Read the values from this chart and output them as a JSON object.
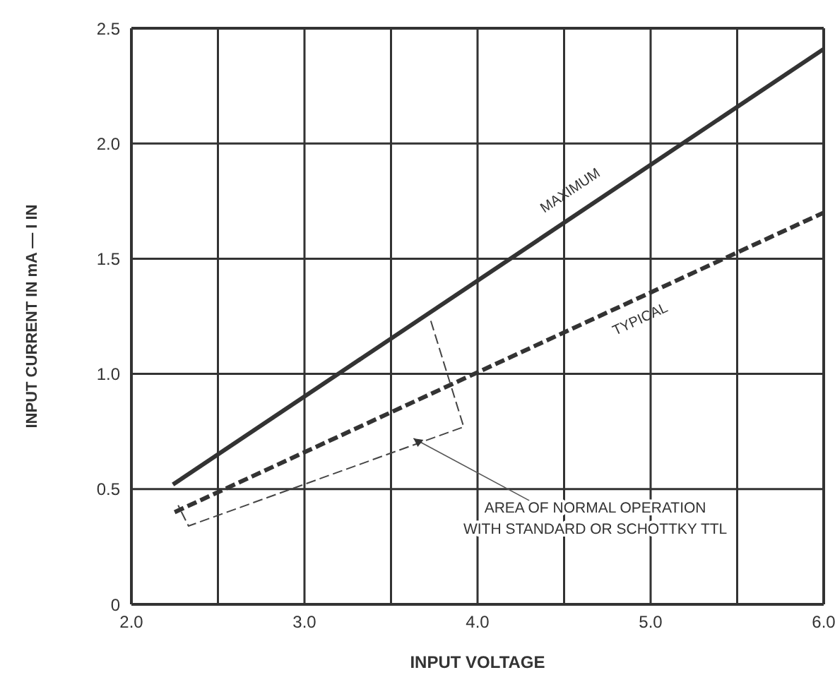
{
  "chart_data": {
    "type": "line",
    "xlabel": "INPUT VOLTAGE",
    "ylabel": "INPUT CURRENT IN mA — I IN",
    "xlim": [
      2,
      6
    ],
    "ylim": [
      0,
      2.5
    ],
    "xticks": [
      {
        "value": 2,
        "label": "2.0"
      },
      {
        "value": 2.5,
        "label": null
      },
      {
        "value": 3,
        "label": "3.0"
      },
      {
        "value": 3.5,
        "label": null
      },
      {
        "value": 4,
        "label": "4.0"
      },
      {
        "value": 4.5,
        "label": null
      },
      {
        "value": 5,
        "label": "5.0"
      },
      {
        "value": 5.5,
        "label": null
      },
      {
        "value": 6,
        "label": "6.0"
      }
    ],
    "yticks": [
      0,
      0.5,
      {
        "value": 1,
        "label": "1.0"
      },
      1.5,
      {
        "value": 2,
        "label": "2.0"
      },
      2.5
    ],
    "grid": true,
    "marker": "none",
    "series": [
      {
        "name": "MAXIMUM",
        "color": "#333333",
        "line_style": "solid",
        "x": [
          2.24,
          6
        ],
        "values": [
          0.52,
          2.41
        ]
      },
      {
        "name": "TYPICAL",
        "color": "#333333",
        "line_style": "dashed",
        "x": [
          2.25,
          6
        ],
        "values": [
          0.4,
          1.7
        ]
      },
      {
        "color": "#444444",
        "line_style": "dashed",
        "x": [
          3.73,
          3.92,
          2.33,
          2.27
        ],
        "values": [
          1.23,
          0.77,
          0.34,
          0.43
        ]
      }
    ],
    "annotations": [
      {
        "text": "AREA OF NORMAL OPERATION WITH STANDARD OR SCHOTTKY TTL",
        "x": 3.63,
        "y": 0.72
      }
    ]
  }
}
